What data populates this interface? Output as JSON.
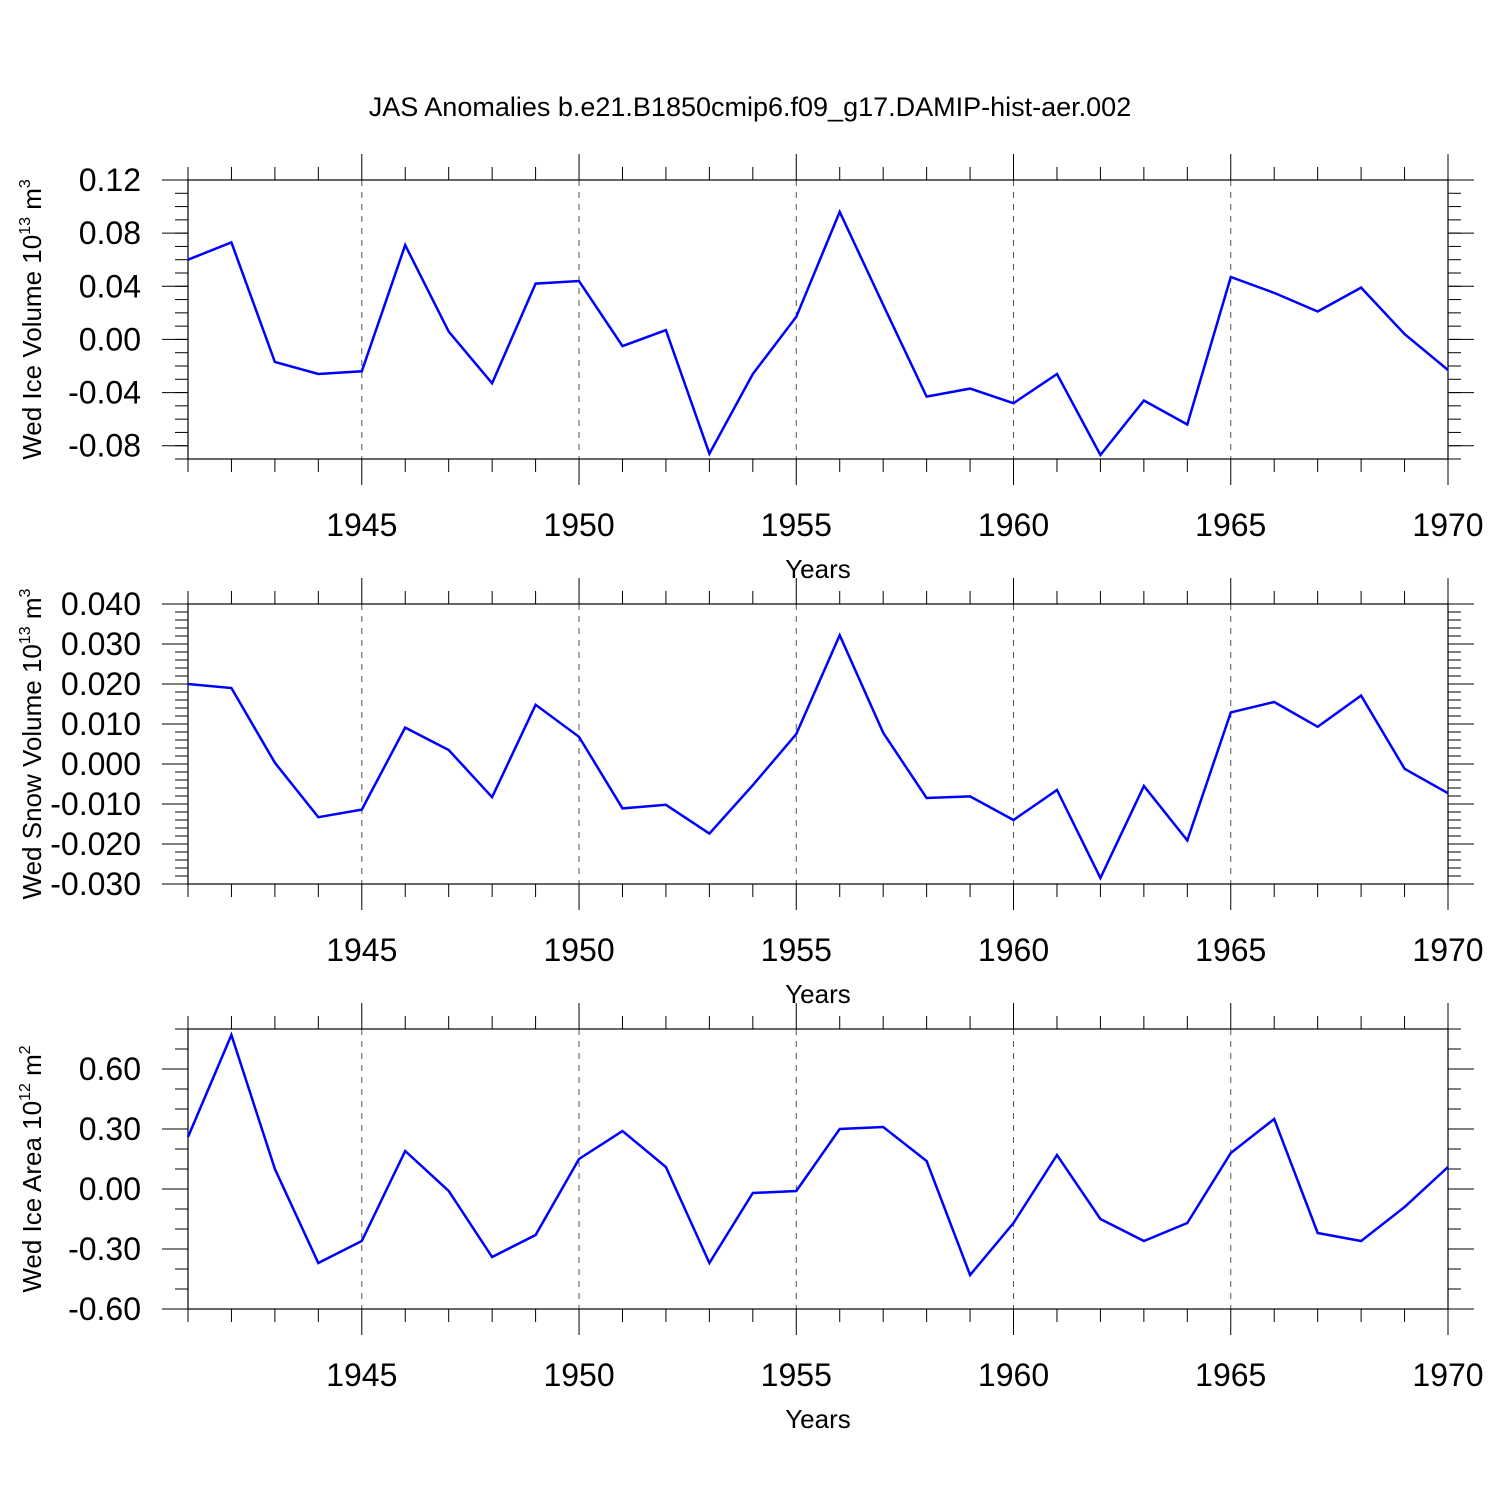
{
  "chart_data": [
    {
      "type": "line",
      "title": "JAS Anomalies b.e21.B1850cmip6.f09_g17.DAMIP-hist-aer.002",
      "ylabel": {
        "main": "Wed Ice Volume 10",
        "exponent": "13",
        "unit": "m",
        "unit_power": "3"
      },
      "xlabel": "Years",
      "xlim": [
        1941,
        1970
      ],
      "ylim": [
        -0.09,
        0.12
      ],
      "yticks": [
        -0.08,
        -0.04,
        0.0,
        0.04,
        0.08,
        0.12
      ],
      "ytick_labels": [
        "-0.08",
        "-0.04",
        "0.00",
        "0.04",
        "0.08",
        "0.12"
      ],
      "yminor_step": 0.01,
      "xticks": [
        1945,
        1950,
        1955,
        1960,
        1965,
        1970
      ],
      "xtick_labels": [
        "1945",
        "1950",
        "1955",
        "1960",
        "1965",
        "1970"
      ],
      "gridlines": "dashed vertical at major x ticks",
      "color": "#0000ff",
      "series": [
        {
          "name": "Wed Ice Volume",
          "x": [
            1941,
            1942,
            1943,
            1944,
            1945,
            1946,
            1947,
            1948,
            1949,
            1950,
            1951,
            1952,
            1953,
            1954,
            1955,
            1956,
            1957,
            1958,
            1959,
            1960,
            1961,
            1962,
            1963,
            1964,
            1965,
            1966,
            1967,
            1968,
            1969,
            1970
          ],
          "values": [
            0.06,
            0.073,
            -0.017,
            -0.026,
            -0.024,
            0.071,
            0.006,
            -0.033,
            0.042,
            0.044,
            -0.005,
            0.007,
            -0.086,
            -0.026,
            0.017,
            0.096,
            0.026,
            -0.043,
            -0.037,
            -0.048,
            -0.026,
            -0.087,
            -0.046,
            -0.064,
            0.047,
            0.035,
            0.021,
            0.039,
            0.004,
            -0.023
          ]
        }
      ]
    },
    {
      "type": "line",
      "ylabel": {
        "main": "Wed Snow Volume 10",
        "exponent": "13",
        "unit": "m",
        "unit_power": "3"
      },
      "xlabel": "Years",
      "xlim": [
        1941,
        1970
      ],
      "ylim": [
        -0.03,
        0.04
      ],
      "yticks": [
        -0.03,
        -0.02,
        -0.01,
        0.0,
        0.01,
        0.02,
        0.03,
        0.04
      ],
      "ytick_labels": [
        "-0.030",
        "-0.020",
        "-0.010",
        "0.000",
        "0.010",
        "0.020",
        "0.030",
        "0.040"
      ],
      "yminor_step": 0.002,
      "xticks": [
        1945,
        1950,
        1955,
        1960,
        1965,
        1970
      ],
      "xtick_labels": [
        "1945",
        "1950",
        "1955",
        "1960",
        "1965",
        "1970"
      ],
      "gridlines": "dashed vertical at major x ticks",
      "color": "#0000ff",
      "series": [
        {
          "name": "Wed Snow Volume",
          "x": [
            1941,
            1942,
            1943,
            1944,
            1945,
            1946,
            1947,
            1948,
            1949,
            1950,
            1951,
            1952,
            1953,
            1954,
            1955,
            1956,
            1957,
            1958,
            1959,
            1960,
            1961,
            1962,
            1963,
            1964,
            1965,
            1966,
            1967,
            1968,
            1969,
            1970
          ],
          "values": [
            0.02,
            0.019,
            0.0003,
            -0.0133,
            -0.0114,
            0.0091,
            0.0035,
            -0.0083,
            0.0148,
            0.0068,
            -0.0111,
            -0.0102,
            -0.0174,
            -0.0053,
            0.0075,
            0.0322,
            0.0078,
            -0.0085,
            -0.0081,
            -0.014,
            -0.0065,
            -0.0285,
            -0.0055,
            -0.0191,
            0.0129,
            0.0155,
            0.0093,
            0.0171,
            -0.0012,
            -0.0073
          ]
        }
      ]
    },
    {
      "type": "line",
      "ylabel": {
        "main": "Wed Ice Area 10",
        "exponent": "12",
        "unit": "m",
        "unit_power": "2"
      },
      "xlabel": "Years",
      "xlim": [
        1941,
        1970
      ],
      "ylim": [
        -0.6,
        0.8
      ],
      "yticks": [
        -0.6,
        -0.3,
        0.0,
        0.3,
        0.6
      ],
      "ytick_labels": [
        "-0.60",
        "-0.30",
        "0.00",
        "0.30",
        "0.60"
      ],
      "yminor_step": 0.1,
      "xticks": [
        1945,
        1950,
        1955,
        1960,
        1965,
        1970
      ],
      "xtick_labels": [
        "1945",
        "1950",
        "1955",
        "1960",
        "1965",
        "1970"
      ],
      "gridlines": "dashed vertical at major x ticks",
      "color": "#0000ff",
      "series": [
        {
          "name": "Wed Ice Area",
          "x": [
            1941,
            1942,
            1943,
            1944,
            1945,
            1946,
            1947,
            1948,
            1949,
            1950,
            1951,
            1952,
            1953,
            1954,
            1955,
            1956,
            1957,
            1958,
            1959,
            1960,
            1961,
            1962,
            1963,
            1964,
            1965,
            1966,
            1967,
            1968,
            1969,
            1970
          ],
          "values": [
            0.26,
            0.77,
            0.1,
            -0.37,
            -0.26,
            0.19,
            -0.01,
            -0.34,
            -0.23,
            0.15,
            0.29,
            0.11,
            -0.37,
            -0.02,
            -0.01,
            0.3,
            0.31,
            0.14,
            -0.43,
            -0.17,
            0.17,
            -0.15,
            -0.26,
            -0.17,
            0.18,
            0.35,
            -0.22,
            -0.26,
            -0.09,
            0.11
          ]
        }
      ]
    }
  ]
}
